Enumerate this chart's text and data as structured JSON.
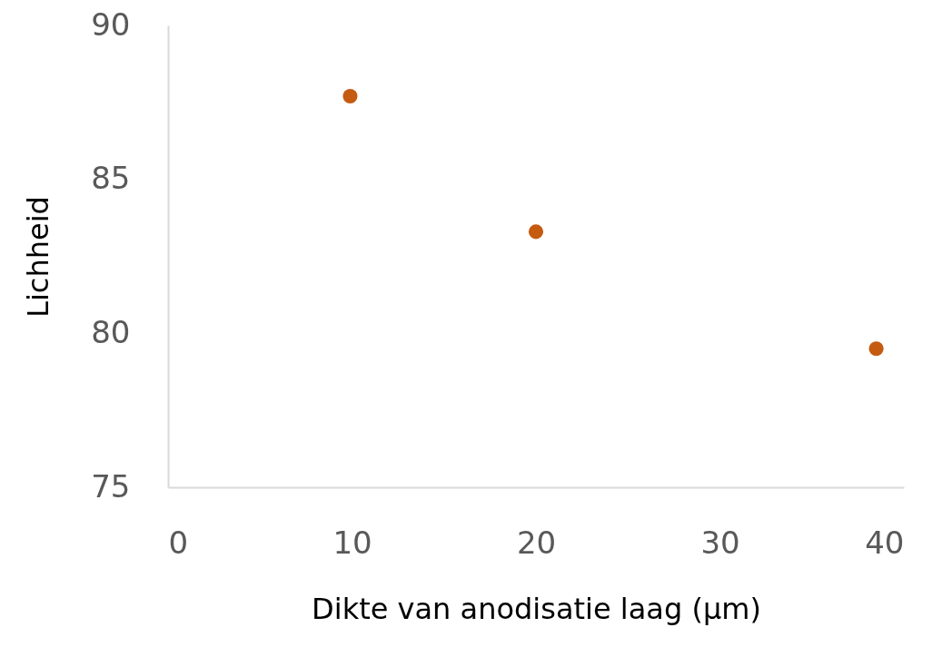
{
  "chart_data": {
    "type": "scatter",
    "xlabel": "Dikte van anodisatie laag (µm)",
    "ylabel": "Lichheid",
    "x": [
      9.9,
      20.0,
      38.5
    ],
    "series": [
      {
        "color": "#c55a11",
        "values": [
          87.7,
          83.3,
          79.5
        ]
      }
    ],
    "xlim": [
      0,
      40
    ],
    "xticks": [
      0,
      10,
      20,
      30,
      40
    ],
    "ylim": [
      75,
      90
    ],
    "yticks": [
      75,
      80,
      85,
      90
    ],
    "grid": false,
    "legend": false,
    "marker": "circle"
  }
}
